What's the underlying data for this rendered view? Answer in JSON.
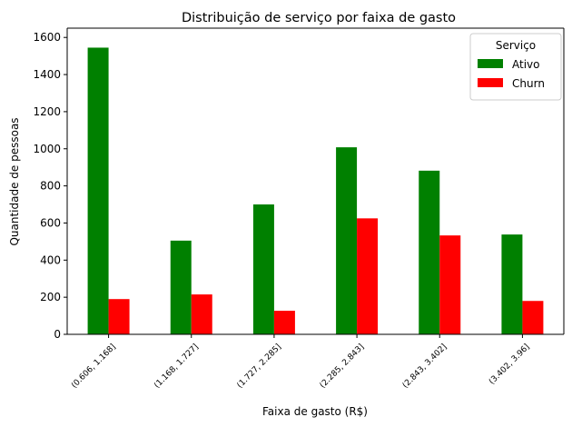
{
  "chart_data": {
    "type": "bar",
    "title": "Distribuição de serviço por faixa de gasto",
    "xlabel": "Faixa de gasto (R$)",
    "ylabel": "Quantidade de pessoas",
    "categories": [
      "(0.606, 1.168]",
      "(1.168, 1.727]",
      "(1.727, 2.285]",
      "(2.285, 2.843]",
      "(2.843, 3.402]",
      "(3.402, 3.96]"
    ],
    "series": [
      {
        "name": "Ativo",
        "color": "#008000",
        "values": [
          1545,
          505,
          700,
          1008,
          882,
          538
        ]
      },
      {
        "name": "Churn",
        "color": "#ff0000",
        "values": [
          190,
          215,
          127,
          625,
          533,
          180
        ]
      }
    ],
    "ylim": [
      0,
      1650
    ],
    "yticks": [
      0,
      200,
      400,
      600,
      800,
      1000,
      1200,
      1400,
      1600
    ],
    "legend": {
      "title": "Serviço",
      "placement": "top-right"
    },
    "grid": false
  }
}
